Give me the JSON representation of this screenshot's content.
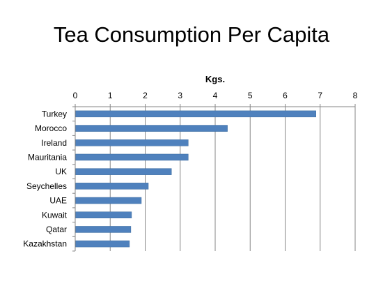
{
  "chart_data": {
    "type": "bar",
    "orientation": "horizontal",
    "title": "Tea Consumption Per Capita",
    "xlabel": "Kgs.",
    "ylabel": "",
    "categories": [
      "Turkey",
      "Morocco",
      "Ireland",
      "Mauritania",
      "UK",
      "Seychelles",
      "UAE",
      "Kuwait",
      "Qatar",
      "Kazakhstan"
    ],
    "values": [
      6.87,
      4.34,
      3.22,
      3.22,
      2.74,
      2.08,
      1.88,
      1.6,
      1.58,
      1.54
    ],
    "xlim": [
      0,
      8
    ],
    "xticks": [
      "0",
      "1",
      "2",
      "3",
      "4",
      "5",
      "6",
      "7",
      "8"
    ],
    "x_axis_position": "top",
    "grid": "vertical",
    "legend": "none",
    "colors": {
      "bar": "#4F81BD",
      "grid": "#868686",
      "axis": "#868686"
    }
  }
}
